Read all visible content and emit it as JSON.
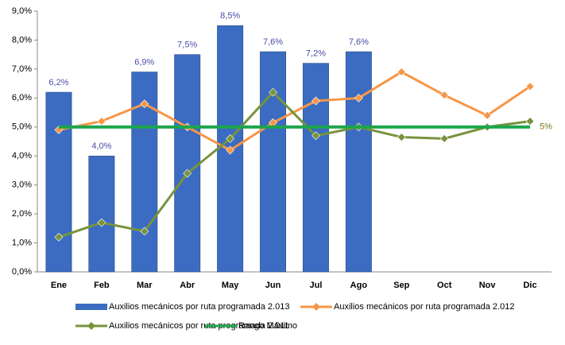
{
  "chart_data": {
    "type": "bar",
    "categories": [
      "Ene",
      "Feb",
      "Mar",
      "Abr",
      "May",
      "Jun",
      "Jul",
      "Ago",
      "Sep",
      "Oct",
      "Nov",
      "Dic"
    ],
    "series": [
      {
        "name": "Auxilios mecánicos por ruta programada 2.013",
        "type": "bar",
        "color": "#3b6cc2",
        "values": [
          6.2,
          4.0,
          6.9,
          7.5,
          8.5,
          7.6,
          7.2,
          7.6,
          null,
          null,
          null,
          null
        ],
        "value_labels": [
          "6,2%",
          "4,0%",
          "6,9%",
          "7,5%",
          "8,5%",
          "7,6%",
          "7,2%",
          "7,6%",
          null,
          null,
          null,
          null
        ]
      },
      {
        "name": "Auxilios mecánicos por ruta programada 2.012",
        "type": "line",
        "color": "#f79646",
        "values": [
          4.9,
          5.2,
          5.8,
          5.0,
          4.2,
          5.15,
          5.9,
          6.0,
          6.9,
          6.1,
          5.4,
          6.4
        ]
      },
      {
        "name": "Auxilios mecánicos por ruta programada 2.011",
        "type": "line",
        "color": "#77933c",
        "values": [
          1.2,
          1.7,
          1.4,
          3.4,
          4.6,
          6.2,
          4.7,
          5.0,
          4.65,
          4.6,
          5.0,
          5.2
        ]
      },
      {
        "name": "Rango Máximo",
        "type": "line",
        "color": "#1aa64a",
        "marker": false,
        "values": [
          5,
          5,
          5,
          5,
          5,
          5,
          5,
          5,
          5,
          5,
          5,
          5
        ],
        "value_labels": [
          null,
          null,
          null,
          null,
          null,
          null,
          null,
          null,
          null,
          null,
          null,
          "5%"
        ]
      }
    ],
    "ylim": [
      0,
      9
    ],
    "yticks": [
      {
        "value": 0,
        "label": "0,0%"
      },
      {
        "value": 1,
        "label": "1,0%"
      },
      {
        "value": 2,
        "label": "2,0%"
      },
      {
        "value": 3,
        "label": "3,0%"
      },
      {
        "value": 4,
        "label": "4,0%"
      },
      {
        "value": 5,
        "label": "5,0%"
      },
      {
        "value": 6,
        "label": "6,0%"
      },
      {
        "value": 7,
        "label": "7,0%"
      },
      {
        "value": 8,
        "label": "8,0%"
      },
      {
        "value": 9,
        "label": "9,0%"
      }
    ],
    "grid": false
  }
}
